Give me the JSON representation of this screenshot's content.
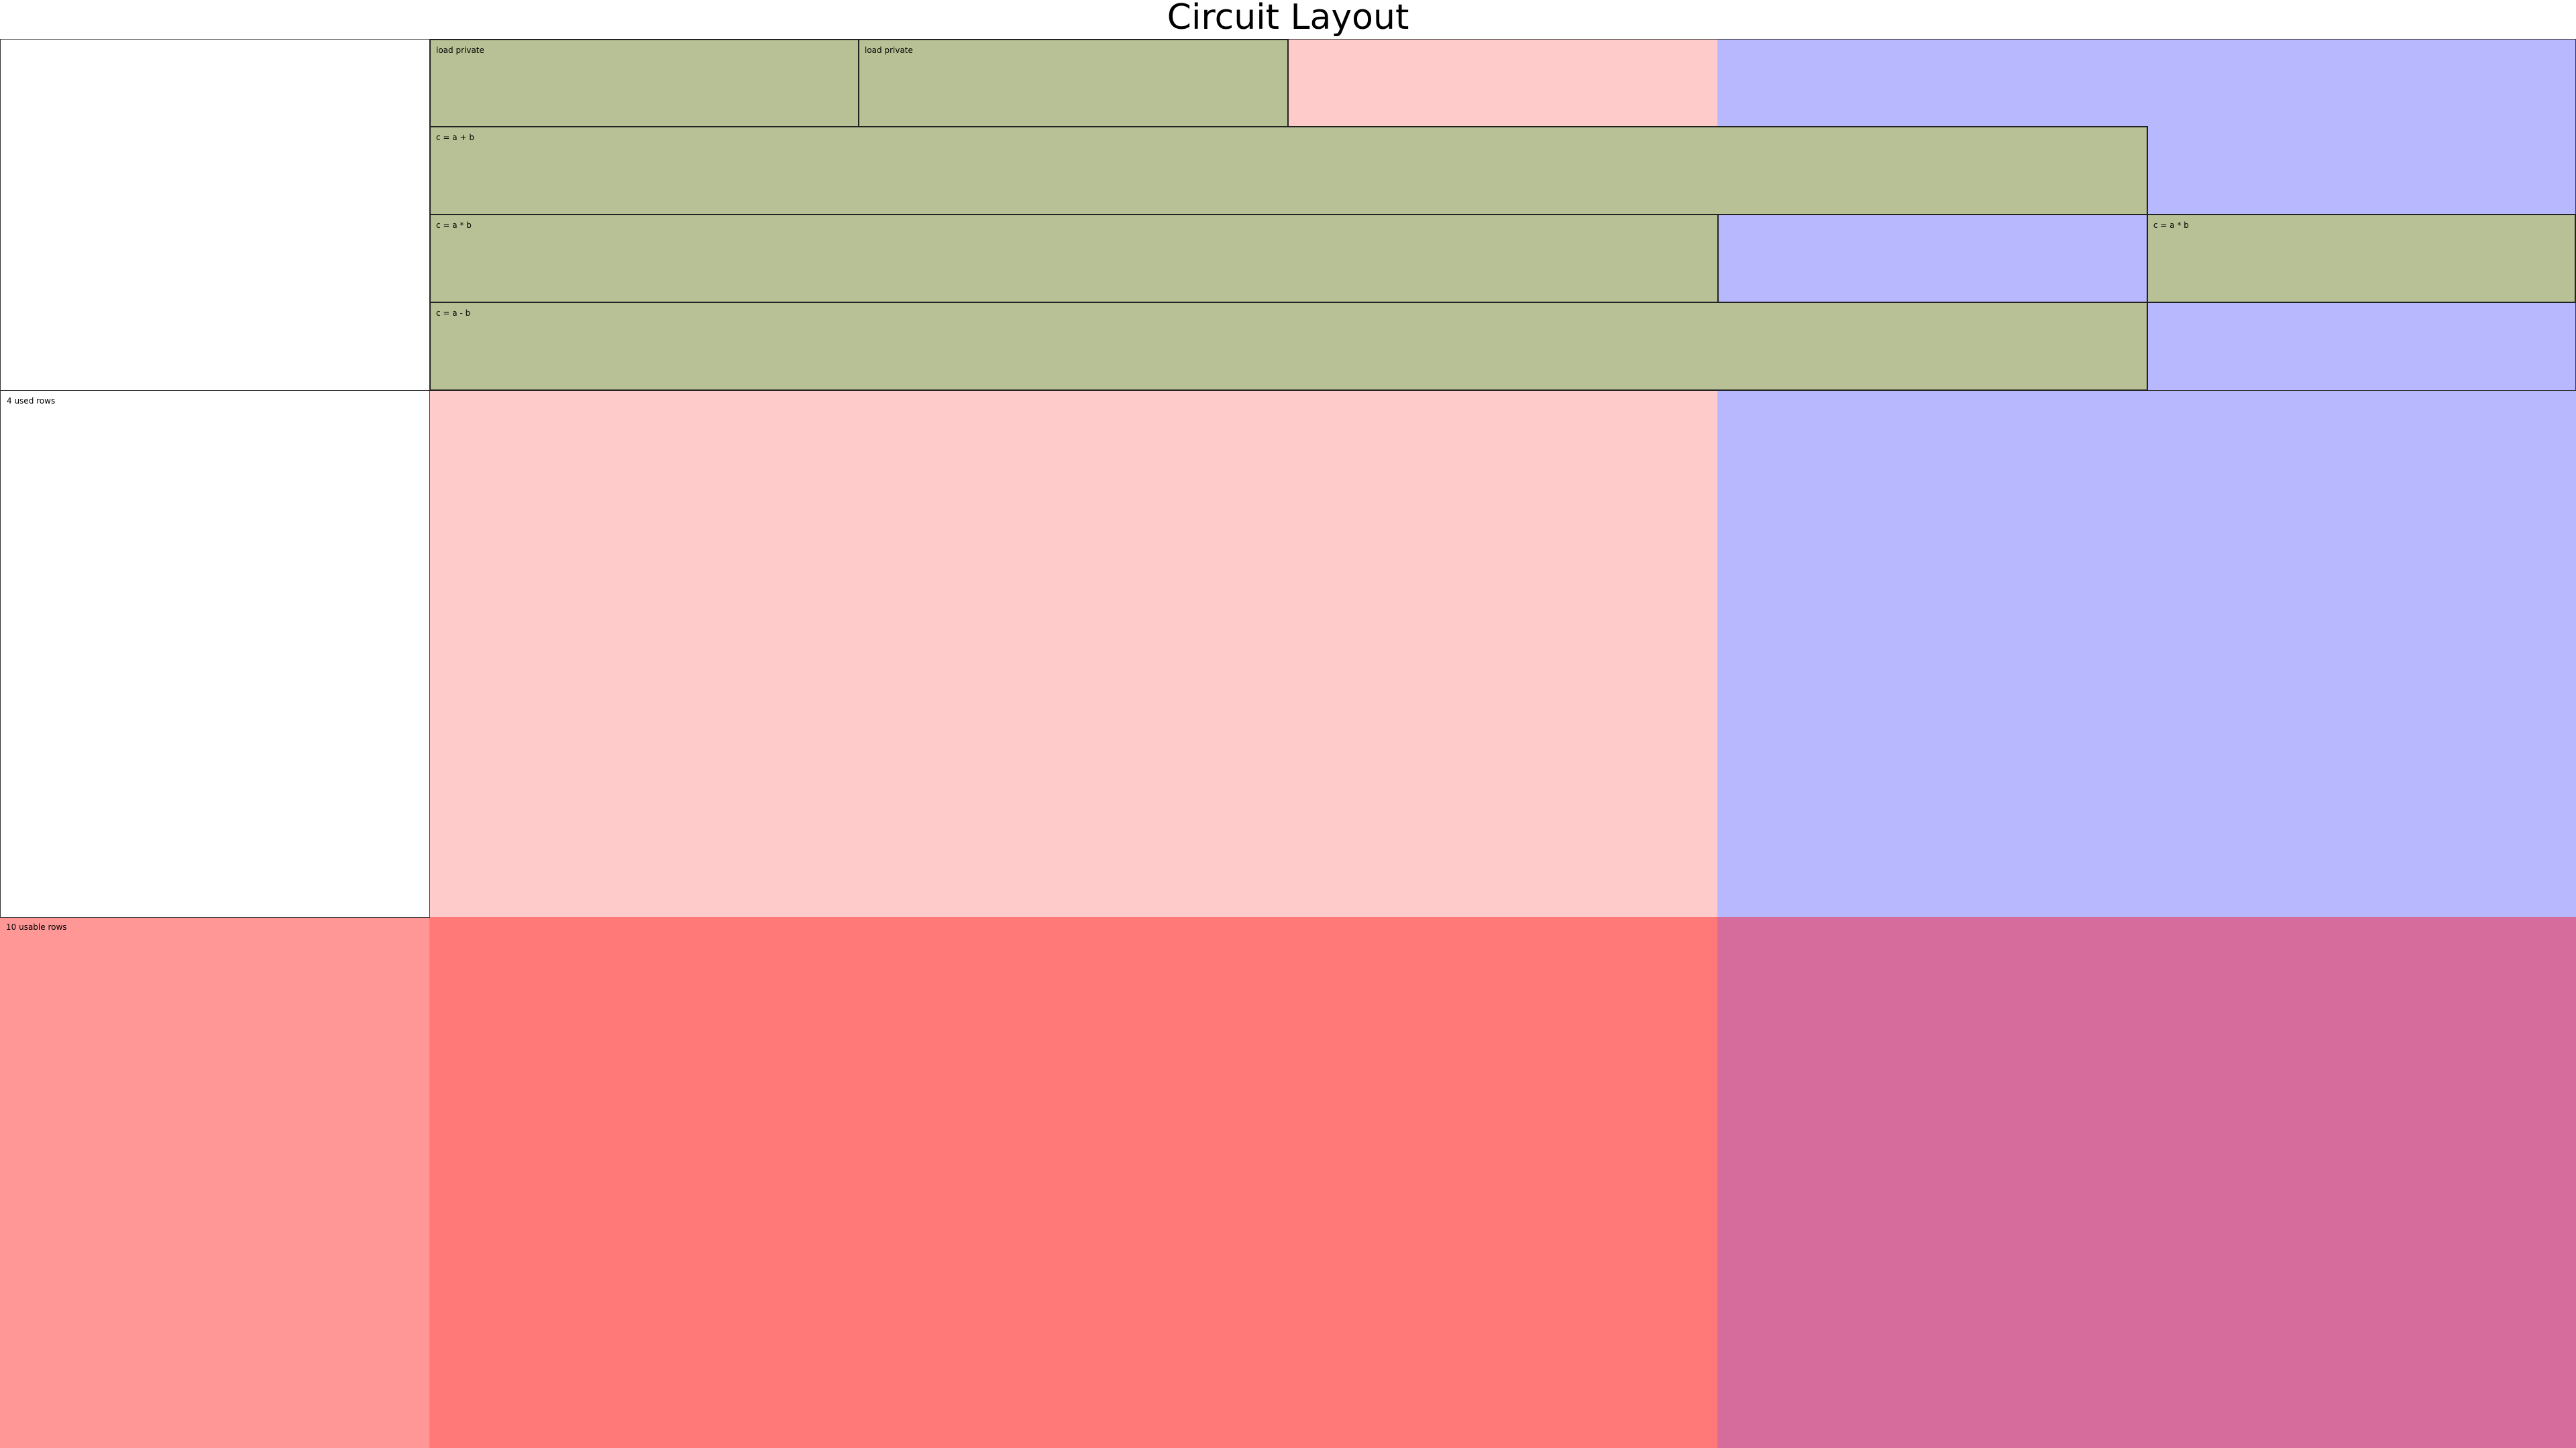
{
  "title": "Circuit Layout",
  "colors": {
    "advice_column": "#fecaca",
    "fixed_column": "#b8b8fe",
    "gate_region": "#b8c196",
    "unusable_selector": "#ff9797",
    "unusable_advice": "#ff7979",
    "unusable_fixed": "#d56c9c",
    "background": "#ffffff",
    "border": "#222222"
  },
  "row_labels": {
    "used_rows": "4 used rows",
    "usable_rows": "10 usable rows"
  },
  "regions": [
    {
      "name": "load-private-region-1",
      "label": "load private"
    },
    {
      "name": "load-private-region-2",
      "label": "load private"
    },
    {
      "name": "add-region",
      "label": "c = a + b"
    },
    {
      "name": "mul-region-1",
      "label": "c = a * b"
    },
    {
      "name": "mul-region-2",
      "label": "c = a * b"
    },
    {
      "name": "sub-region",
      "label": "c = a - b"
    }
  ]
}
